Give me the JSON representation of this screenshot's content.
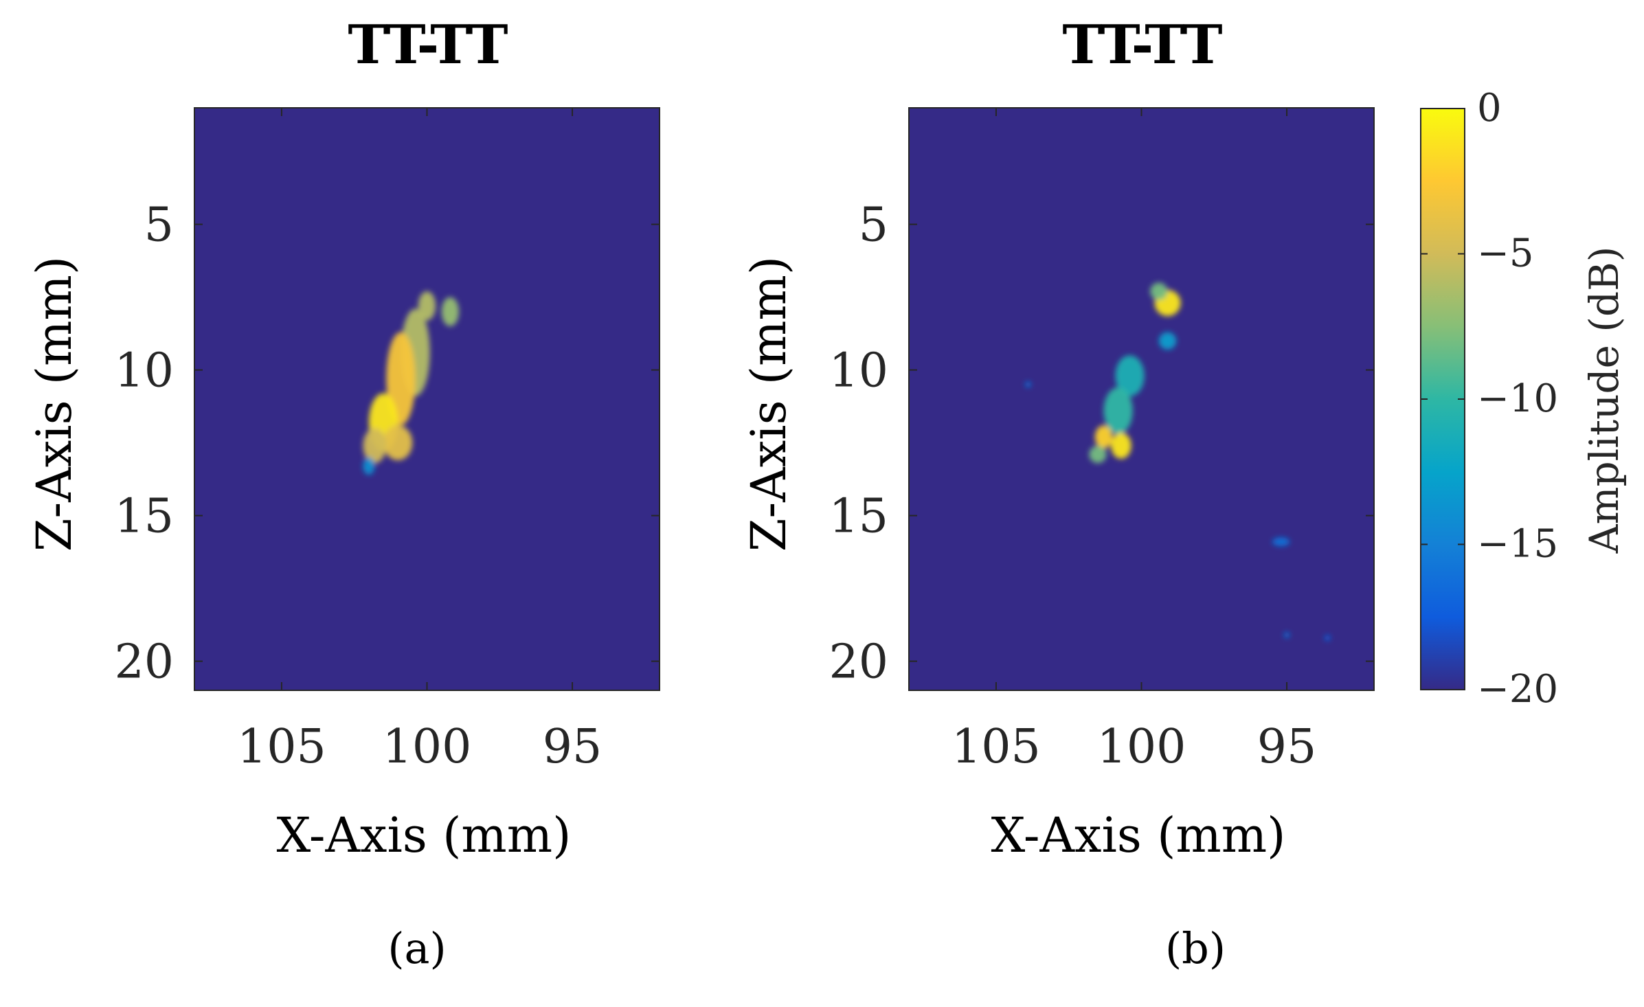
{
  "chart_data": [
    {
      "type": "heatmap",
      "title": "TT-TT",
      "caption": "(a)",
      "xlabel": "X-Axis (mm)",
      "ylabel": "Z-Axis (mm)",
      "xlim": [
        108,
        92
      ],
      "ylim": [
        1,
        21
      ],
      "xticks": [
        105,
        100,
        95
      ],
      "yticks": [
        5,
        10,
        15,
        20
      ],
      "x_reversed": true,
      "y_reversed": true,
      "background_db": -20,
      "blobs": [
        {
          "x": 100.0,
          "z": 7.8,
          "sx": 0.3,
          "sz": 0.5,
          "db": -6
        },
        {
          "x": 99.2,
          "z": 8.0,
          "sx": 0.3,
          "sz": 0.5,
          "db": -7
        },
        {
          "x": 100.4,
          "z": 9.4,
          "sx": 0.5,
          "sz": 1.5,
          "db": -6
        },
        {
          "x": 100.9,
          "z": 10.3,
          "sx": 0.5,
          "sz": 1.6,
          "db": -3
        },
        {
          "x": 101.5,
          "z": 11.8,
          "sx": 0.5,
          "sz": 1.0,
          "db": -1
        },
        {
          "x": 101.0,
          "z": 12.5,
          "sx": 0.5,
          "sz": 0.6,
          "db": -4
        },
        {
          "x": 101.8,
          "z": 12.6,
          "sx": 0.4,
          "sz": 0.6,
          "db": -5
        },
        {
          "x": 102.0,
          "z": 13.3,
          "sx": 0.2,
          "sz": 0.3,
          "db": -14
        }
      ]
    },
    {
      "type": "heatmap",
      "title": "TT-TT",
      "caption": "(b)",
      "xlabel": "X-Axis (mm)",
      "ylabel": "Z-Axis (mm)",
      "xlim": [
        108,
        92
      ],
      "ylim": [
        1,
        21
      ],
      "xticks": [
        105,
        100,
        95
      ],
      "yticks": [
        5,
        10,
        15,
        20
      ],
      "x_reversed": true,
      "y_reversed": true,
      "background_db": -20,
      "blobs": [
        {
          "x": 99.1,
          "z": 7.7,
          "sx": 0.45,
          "sz": 0.45,
          "db": -1
        },
        {
          "x": 99.4,
          "z": 7.3,
          "sx": 0.3,
          "sz": 0.3,
          "db": -8
        },
        {
          "x": 99.1,
          "z": 9.0,
          "sx": 0.3,
          "sz": 0.3,
          "db": -13
        },
        {
          "x": 100.4,
          "z": 10.2,
          "sx": 0.5,
          "sz": 0.7,
          "db": -11
        },
        {
          "x": 100.8,
          "z": 11.4,
          "sx": 0.5,
          "sz": 0.8,
          "db": -10
        },
        {
          "x": 101.3,
          "z": 12.3,
          "sx": 0.3,
          "sz": 0.4,
          "db": -2
        },
        {
          "x": 100.7,
          "z": 12.6,
          "sx": 0.35,
          "sz": 0.45,
          "db": -1
        },
        {
          "x": 101.5,
          "z": 12.9,
          "sx": 0.3,
          "sz": 0.3,
          "db": -8
        },
        {
          "x": 103.9,
          "z": 10.5,
          "sx": 0.1,
          "sz": 0.1,
          "db": -16
        },
        {
          "x": 95.2,
          "z": 15.9,
          "sx": 0.3,
          "sz": 0.15,
          "db": -16
        },
        {
          "x": 95.0,
          "z": 19.1,
          "sx": 0.1,
          "sz": 0.1,
          "db": -16
        },
        {
          "x": 93.6,
          "z": 19.2,
          "sx": 0.1,
          "sz": 0.1,
          "db": -17
        }
      ]
    }
  ],
  "colorbar": {
    "label": "Amplitude (dB)",
    "ticks": [
      "0",
      "−5",
      "−10",
      "−15",
      "−20"
    ],
    "tick_values": [
      0,
      -5,
      -10,
      -15,
      -20
    ],
    "range": [
      -20,
      0
    ],
    "colormap": "parula",
    "stops": [
      "#352a87",
      "#0f5cdd",
      "#1481d6",
      "#06a4ca",
      "#2eb7a4",
      "#87bf77",
      "#d1bb59",
      "#fec832",
      "#f9fb0e"
    ]
  }
}
